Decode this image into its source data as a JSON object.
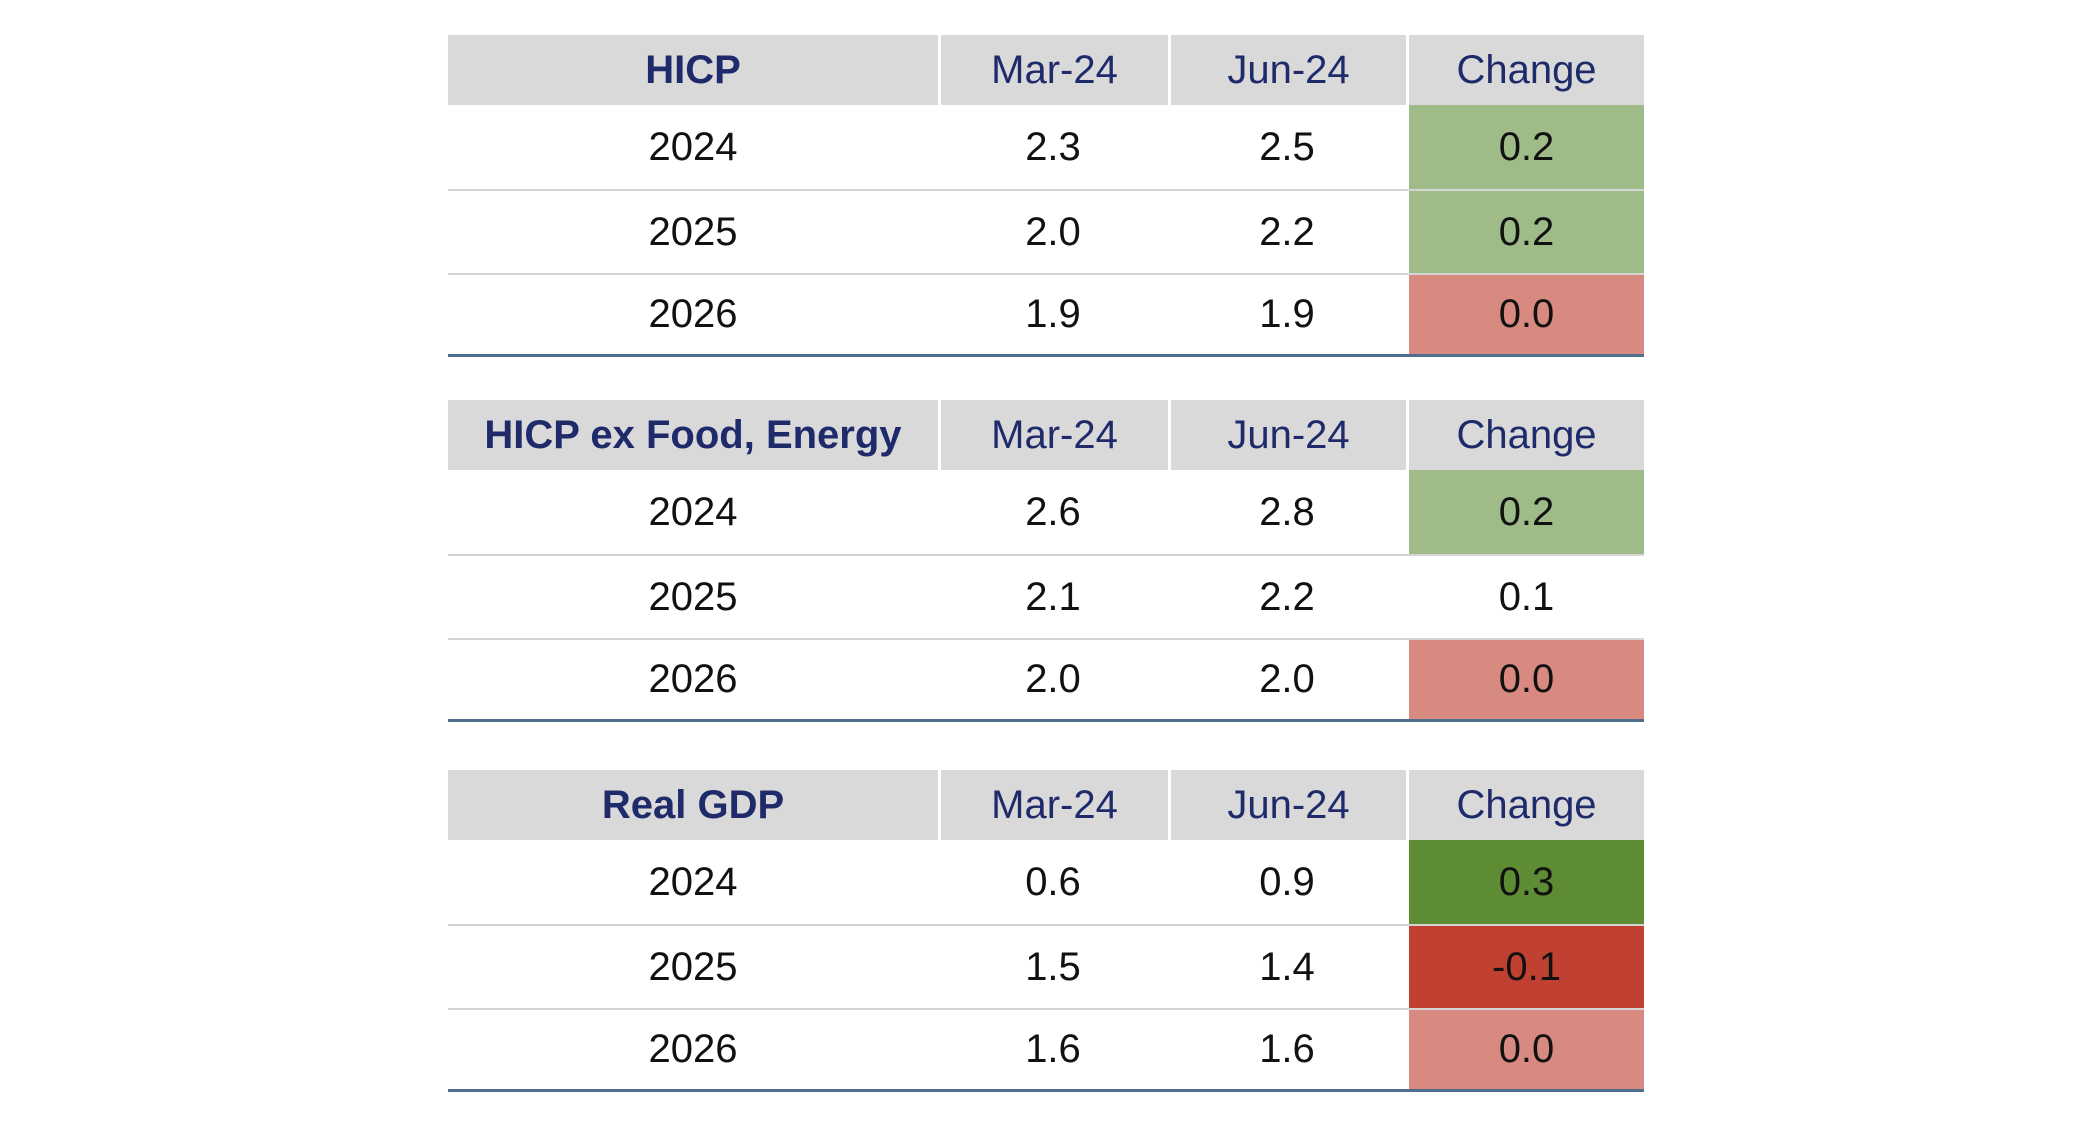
{
  "colors": {
    "header_bg": "#d9d9d9",
    "header_text": "#1f2a6b",
    "light_green": "#9fbc88",
    "dark_green": "#5e8c35",
    "light_red": "#d98a80",
    "dark_red": "#c04031",
    "rule": "#4f6f8f"
  },
  "chart_data": {
    "type": "table",
    "columns": [
      "Mar-24",
      "Jun-24",
      "Change"
    ],
    "tables": [
      {
        "title": "HICP",
        "rows": [
          {
            "year": "2024",
            "mar": "2.3",
            "jun": "2.5",
            "change": "0.2",
            "highlight": "light_green"
          },
          {
            "year": "2025",
            "mar": "2.0",
            "jun": "2.2",
            "change": "0.2",
            "highlight": "light_green"
          },
          {
            "year": "2026",
            "mar": "1.9",
            "jun": "1.9",
            "change": "0.0",
            "highlight": "light_red"
          }
        ]
      },
      {
        "title": "HICP ex Food, Energy",
        "rows": [
          {
            "year": "2024",
            "mar": "2.6",
            "jun": "2.8",
            "change": "0.2",
            "highlight": "light_green"
          },
          {
            "year": "2025",
            "mar": "2.1",
            "jun": "2.2",
            "change": "0.1",
            "highlight": "none"
          },
          {
            "year": "2026",
            "mar": "2.0",
            "jun": "2.0",
            "change": "0.0",
            "highlight": "light_red"
          }
        ]
      },
      {
        "title": "Real GDP",
        "rows": [
          {
            "year": "2024",
            "mar": "0.6",
            "jun": "0.9",
            "change": "0.3",
            "highlight": "dark_green"
          },
          {
            "year": "2025",
            "mar": "1.5",
            "jun": "1.4",
            "change": "-0.1",
            "highlight": "dark_red"
          },
          {
            "year": "2026",
            "mar": "1.6",
            "jun": "1.6",
            "change": "0.0",
            "highlight": "light_red"
          }
        ]
      }
    ]
  }
}
